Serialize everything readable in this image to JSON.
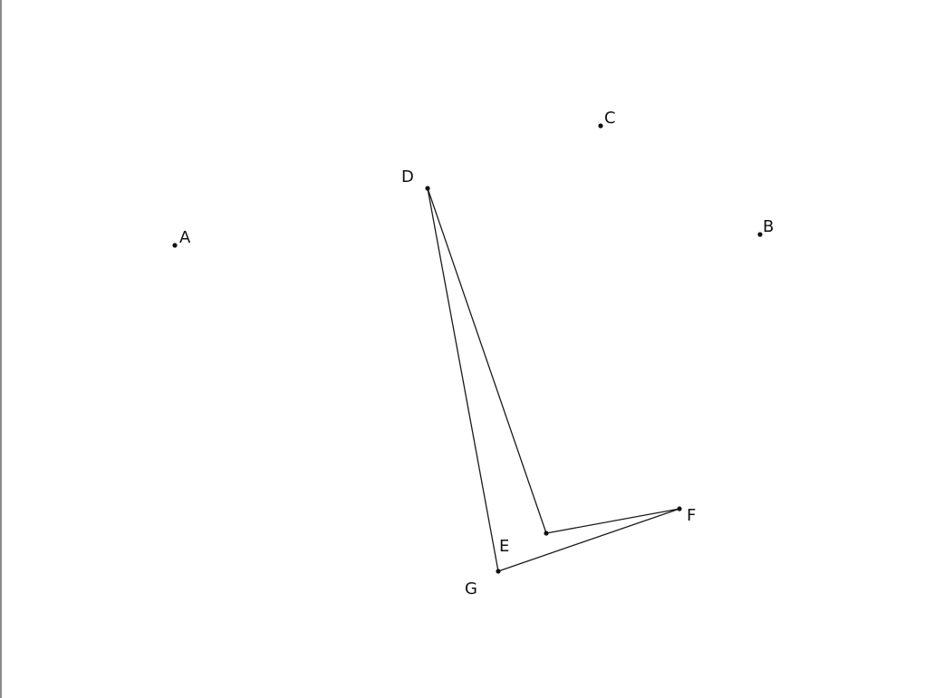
{
  "diagram": {
    "stroke_color": "#1a1a1a",
    "point_color": "#111111",
    "label_color": "#111111",
    "points": [
      {
        "id": "A",
        "label": "A"
      },
      {
        "id": "B",
        "label": "B"
      },
      {
        "id": "C",
        "label": "C"
      },
      {
        "id": "D",
        "label": "D"
      },
      {
        "id": "E",
        "label": "E"
      },
      {
        "id": "F",
        "label": "F"
      },
      {
        "id": "G",
        "label": "G"
      }
    ],
    "segments": [
      {
        "from": "D",
        "to": "E"
      },
      {
        "from": "E",
        "to": "F"
      },
      {
        "from": "F",
        "to": "G"
      },
      {
        "from": "G",
        "to": "D"
      }
    ]
  }
}
